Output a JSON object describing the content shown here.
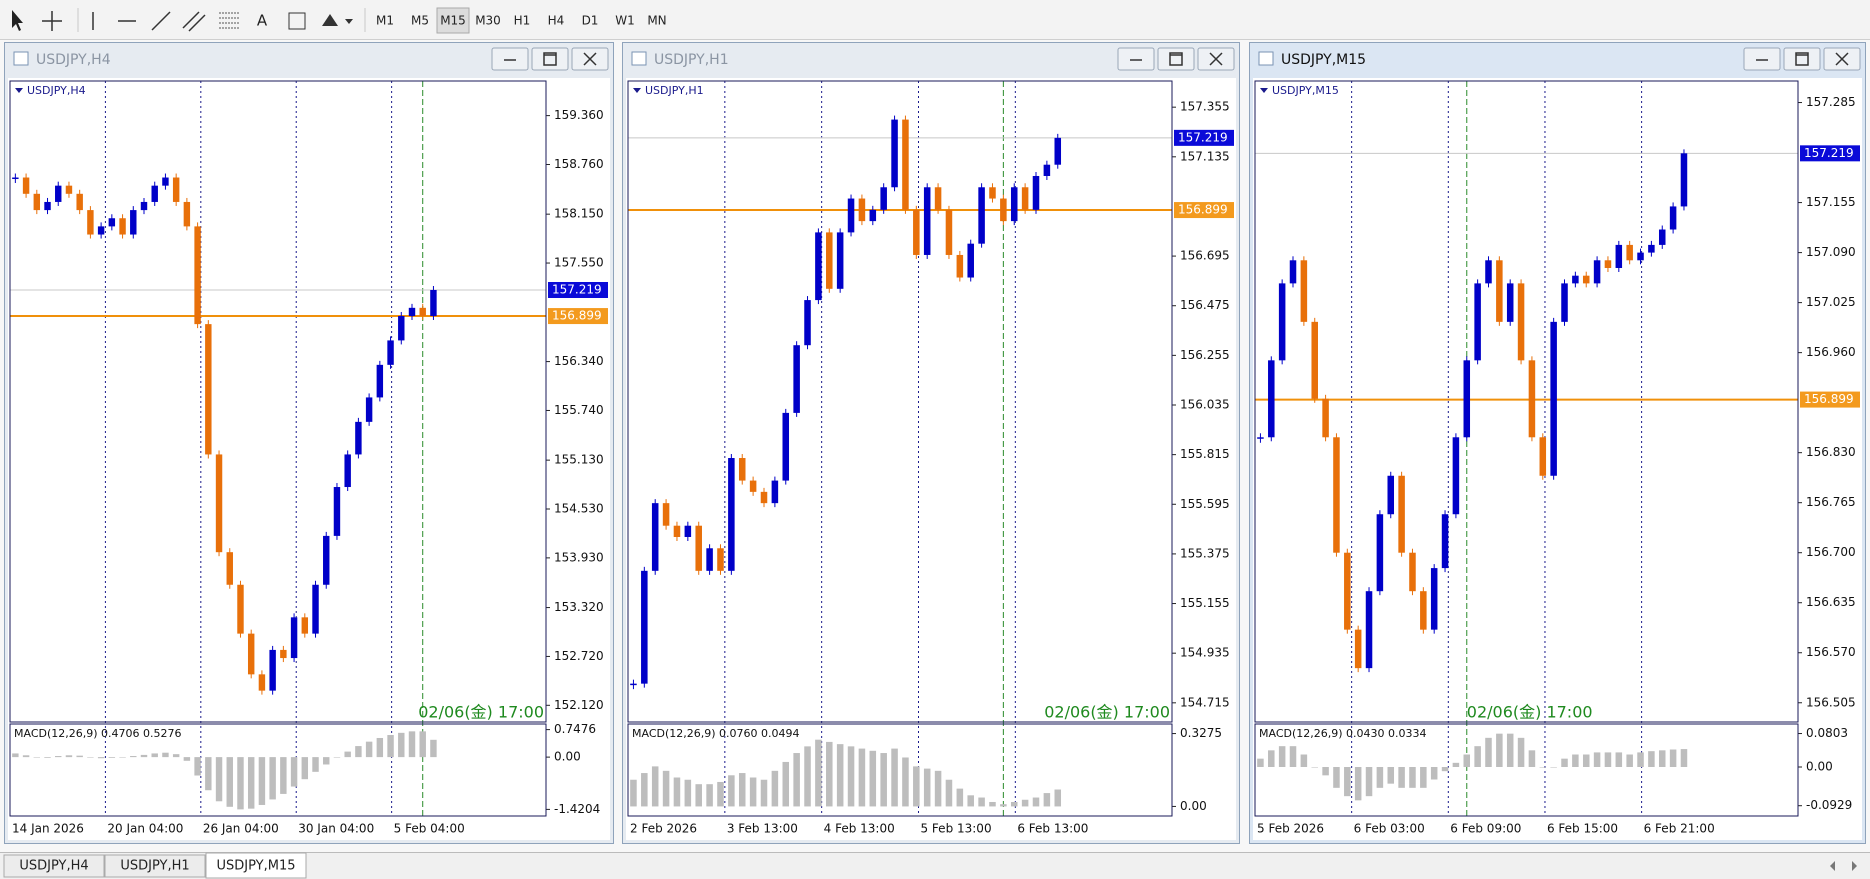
{
  "toolbar": {
    "text_tool": "A",
    "timeframes": [
      "M1",
      "M5",
      "M15",
      "M30",
      "H1",
      "H4",
      "D1",
      "W1",
      "MN"
    ]
  },
  "windows": [
    {
      "title": "USDJPY,H4",
      "chart_label": "USDJPY,H4",
      "time_label": "02/06(金) 17:00",
      "ylim": [
        151.915,
        159.785
      ],
      "yticks": [
        {
          "value": 159.36,
          "label": "159.360"
        },
        {
          "value": 158.76,
          "label": "158.760"
        },
        {
          "value": 158.15,
          "label": "158.150"
        },
        {
          "value": 157.55,
          "label": "157.550"
        },
        {
          "value": 156.34,
          "label": "156.340"
        },
        {
          "value": 155.74,
          "label": "155.740"
        },
        {
          "value": 155.13,
          "label": "155.130"
        },
        {
          "value": 154.53,
          "label": "154.530"
        },
        {
          "value": 153.93,
          "label": "153.930"
        },
        {
          "value": 153.32,
          "label": "153.320"
        },
        {
          "value": 152.72,
          "label": "152.720"
        },
        {
          "value": 152.12,
          "label": "152.120"
        }
      ],
      "current_price": 157.219,
      "line_price": 156.899,
      "closes": [
        158.6,
        158.4,
        158.2,
        158.3,
        158.5,
        158.4,
        158.2,
        157.9,
        158.0,
        158.1,
        157.9,
        158.2,
        158.3,
        158.5,
        158.6,
        158.3,
        158.0,
        156.8,
        155.2,
        154.0,
        153.6,
        153.0,
        152.5,
        152.3,
        152.8,
        152.7,
        153.2,
        153.0,
        153.6,
        154.2,
        154.8,
        155.2,
        155.6,
        155.9,
        156.3,
        156.6,
        156.9,
        157.0,
        156.9,
        157.219
      ],
      "dates": [
        "14 Jan 2026",
        "20 Jan 04:00",
        "26 Jan 04:00",
        "30 Jan 04:00",
        "5 Feb 04:00"
      ],
      "macd": {
        "label": "MACD(12,26,9) 0.4706 0.5276",
        "ylim": [
          -1.6,
          0.9
        ],
        "yticks": [
          0.7476,
          {
            "value": 0,
            "label": "0.00"
          },
          -1.4204
        ],
        "values": [
          0.1,
          0.05,
          0.0,
          -0.02,
          0.03,
          0.05,
          0.04,
          0.0,
          -0.03,
          -0.02,
          0.0,
          0.03,
          0.06,
          0.1,
          0.12,
          0.08,
          -0.1,
          -0.5,
          -0.9,
          -1.2,
          -1.35,
          -1.42,
          -1.4,
          -1.3,
          -1.15,
          -1.0,
          -0.8,
          -0.6,
          -0.4,
          -0.2,
          0.0,
          0.15,
          0.3,
          0.42,
          0.52,
          0.6,
          0.66,
          0.7,
          0.7,
          0.4706
        ]
      }
    },
    {
      "title": "USDJPY,H1",
      "chart_label": "USDJPY,H1",
      "time_label": "02/06(金) 17:00",
      "ylim": [
        154.63,
        157.471
      ],
      "yticks": [
        157.355,
        157.135,
        156.695,
        156.475,
        156.255,
        156.035,
        155.815,
        155.595,
        155.375,
        155.155,
        154.935,
        154.715
      ],
      "current_price": 157.219,
      "line_price": 156.899,
      "closes": [
        154.8,
        155.3,
        155.6,
        155.5,
        155.45,
        155.5,
        155.3,
        155.4,
        155.3,
        155.8,
        155.7,
        155.65,
        155.6,
        155.7,
        156.0,
        156.3,
        156.5,
        156.8,
        156.55,
        156.8,
        156.95,
        156.85,
        156.9,
        157.0,
        157.3,
        156.9,
        156.7,
        157.0,
        156.9,
        156.7,
        156.6,
        156.75,
        157.0,
        156.95,
        156.85,
        157.0,
        156.9,
        157.05,
        157.1,
        157.219
      ],
      "dates": [
        "2 Feb 2026",
        "3 Feb 13:00",
        "4 Feb 13:00",
        "5 Feb 13:00",
        "6 Feb 13:00"
      ],
      "macd": {
        "label": "MACD(12,26,9) 0.0760 0.0494",
        "ylim": [
          -0.043,
          0.3705
        ],
        "yticks": [
          0.3275,
          {
            "value": 0,
            "label": "0.00"
          }
        ],
        "values": [
          0.12,
          0.15,
          0.18,
          0.16,
          0.13,
          0.12,
          0.1,
          0.1,
          0.11,
          0.14,
          0.15,
          0.13,
          0.12,
          0.16,
          0.2,
          0.24,
          0.27,
          0.3,
          0.29,
          0.28,
          0.27,
          0.26,
          0.25,
          0.24,
          0.26,
          0.22,
          0.18,
          0.17,
          0.16,
          0.12,
          0.08,
          0.05,
          0.04,
          0.02,
          0.01,
          0.02,
          0.03,
          0.04,
          0.06,
          0.076
        ]
      }
    },
    {
      "title": "USDJPY,M15",
      "chart_label": "USDJPY,M15",
      "time_label": "02/06(金) 17:00",
      "ylim": [
        156.48,
        157.313
      ],
      "yticks": [
        157.285,
        157.155,
        {
          "value": 157.09,
          "label": "157.090"
        },
        157.025,
        {
          "value": 156.96,
          "label": "156.960"
        },
        {
          "value": 156.83,
          "label": "156.830"
        },
        156.765,
        {
          "value": 156.7,
          "label": "156.700"
        },
        156.635,
        {
          "value": 156.57,
          "label": "156.570"
        },
        156.505
      ],
      "current_price": 157.219,
      "line_price": 156.899,
      "closes": [
        156.85,
        156.95,
        157.05,
        157.08,
        157.0,
        156.9,
        156.85,
        156.7,
        156.6,
        156.55,
        156.65,
        156.75,
        156.8,
        156.7,
        156.65,
        156.6,
        156.68,
        156.75,
        156.85,
        156.95,
        157.05,
        157.08,
        157.0,
        157.05,
        156.95,
        156.85,
        156.8,
        157.0,
        157.05,
        157.06,
        157.05,
        157.08,
        157.07,
        157.1,
        157.08,
        157.09,
        157.1,
        157.12,
        157.15,
        157.219
      ],
      "dates": [
        "5 Feb 2026",
        "6 Feb 03:00",
        "6 Feb 09:00",
        "6 Feb 15:00",
        "6 Feb 21:00"
      ],
      "macd": {
        "label": "MACD(12,26,9) 0.0430 0.0334",
        "ylim": [
          -0.1176,
          0.1032
        ],
        "yticks": [
          0.0803,
          {
            "value": 0,
            "label": "0.00"
          },
          -0.0929
        ],
        "values": [
          0.02,
          0.04,
          0.05,
          0.05,
          0.03,
          0.0,
          -0.02,
          -0.05,
          -0.07,
          -0.08,
          -0.07,
          -0.05,
          -0.04,
          -0.05,
          -0.05,
          -0.05,
          -0.03,
          -0.01,
          0.01,
          0.03,
          0.05,
          0.07,
          0.08,
          0.08,
          0.07,
          0.04,
          0.0,
          0.0,
          0.02,
          0.03,
          0.03,
          0.035,
          0.035,
          0.035,
          0.03,
          0.035,
          0.038,
          0.04,
          0.042,
          0.043
        ]
      }
    }
  ],
  "tabs": [
    "USDJPY,H4",
    "USDJPY,H1",
    "USDJPY,M15"
  ]
}
